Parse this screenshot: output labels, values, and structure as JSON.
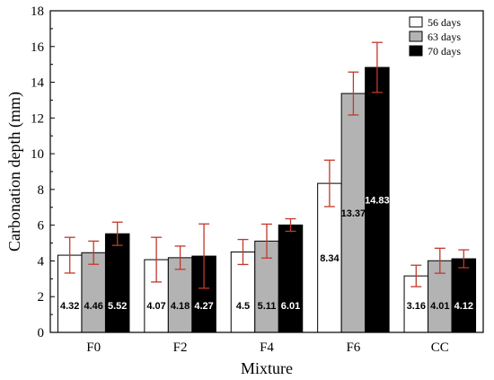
{
  "chart_data": {
    "type": "bar",
    "xlabel": "Mixture",
    "ylabel": "Carbonation depth (mm)",
    "categories": [
      "F0",
      "F2",
      "F4",
      "F6",
      "CC"
    ],
    "ylim": [
      0,
      18
    ],
    "yticks": [
      0,
      2,
      4,
      6,
      8,
      10,
      12,
      14,
      16,
      18
    ],
    "legend_position": "top-right",
    "grid": false,
    "series": [
      {
        "name": "56 days",
        "fill": "#ffffff",
        "label_color": "#000000",
        "values": [
          4.32,
          4.07,
          4.5,
          8.34,
          3.16
        ],
        "labels": [
          "4.32",
          "4.07",
          "4.5",
          "8.34",
          "3.16"
        ],
        "error": [
          1.0,
          1.25,
          0.7,
          1.3,
          0.6
        ]
      },
      {
        "name": "63 days",
        "fill": "#b3b3b3",
        "label_color": "#000000",
        "values": [
          4.46,
          4.18,
          5.11,
          13.37,
          4.01
        ],
        "labels": [
          "4.46",
          "4.18",
          "5.11",
          "13.37",
          "4.01"
        ],
        "error": [
          0.65,
          0.65,
          0.95,
          1.2,
          0.7
        ]
      },
      {
        "name": "70 days",
        "fill": "#000000",
        "label_color": "#ffffff",
        "values": [
          5.52,
          4.27,
          6.01,
          14.83,
          4.12
        ],
        "labels": [
          "5.52",
          "4.27",
          "6.01",
          "14.83",
          "4.12"
        ],
        "error": [
          0.65,
          1.8,
          0.35,
          1.4,
          0.5
        ]
      }
    ],
    "error_bar_color": "#c0392b"
  }
}
